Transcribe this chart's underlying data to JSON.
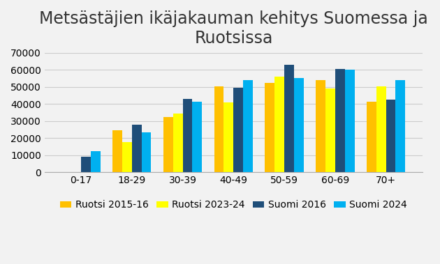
{
  "title": "Metsästäjien ikäjakauman kehitys Suomessa ja\nRuotsissa",
  "categories": [
    "0-17",
    "18-29",
    "30-39",
    "40-49",
    "50-59",
    "60-69",
    "70+"
  ],
  "series": {
    "Ruotsi 2015-16": [
      0,
      24500,
      32500,
      50500,
      52500,
      54000,
      41500
    ],
    "Ruotsi 2023-24": [
      0,
      17500,
      34500,
      41000,
      56000,
      49000,
      50500
    ],
    "Suomi 2016": [
      9000,
      28000,
      43000,
      49500,
      63000,
      60500,
      42500
    ],
    "Suomi 2024": [
      12500,
      23500,
      41500,
      54000,
      55000,
      60000,
      54000
    ]
  },
  "colors": {
    "Ruotsi 2015-16": "#FFC000",
    "Ruotsi 2023-24": "#FFFF00",
    "Suomi 2016": "#1F4E79",
    "Suomi 2024": "#00B0F0"
  },
  "ylim": [
    0,
    70000
  ],
  "yticks": [
    0,
    10000,
    20000,
    30000,
    40000,
    50000,
    60000,
    70000
  ],
  "background_color": "#F2F2F2",
  "title_fontsize": 17,
  "tick_fontsize": 10,
  "legend_fontsize": 10,
  "bar_width": 0.19
}
